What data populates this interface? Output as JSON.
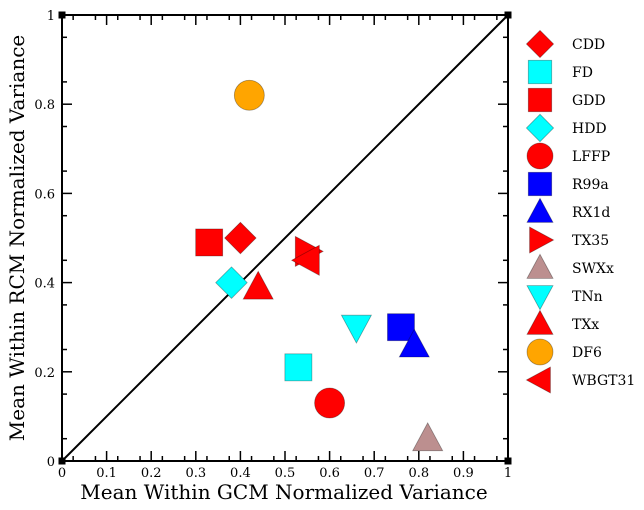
{
  "chart_data": {
    "type": "scatter",
    "title": "",
    "xlabel": "Mean Within GCM Normalized Variance",
    "ylabel": "Mean Within RCM Normalized Variance",
    "xlim": [
      0,
      1
    ],
    "ylim": [
      0,
      1
    ],
    "x_major_ticks": [
      "0",
      "0.1",
      "0.2",
      "0.3",
      "0.4",
      "0.5",
      "0.6",
      "0.7",
      "0.8",
      "0.9",
      "1"
    ],
    "y_major_ticks": [
      "0",
      "0.2",
      "0.4",
      "0.6",
      "0.8",
      "1"
    ],
    "grid": false,
    "legend_position": "right",
    "reference_line": {
      "from": [
        0,
        0
      ],
      "to": [
        1,
        1
      ]
    },
    "series": [
      {
        "name": "CDD",
        "marker": "diamond",
        "color": "#ff0000",
        "x": 0.4,
        "y": 0.5
      },
      {
        "name": "FD",
        "marker": "square",
        "color": "#00ffff",
        "x": 0.53,
        "y": 0.21
      },
      {
        "name": "GDD",
        "marker": "square",
        "color": "#ff0000",
        "x": 0.33,
        "y": 0.49
      },
      {
        "name": "HDD",
        "marker": "diamond",
        "color": "#00ffff",
        "x": 0.38,
        "y": 0.4
      },
      {
        "name": "LFFP",
        "marker": "circle",
        "color": "#ff0000",
        "x": 0.6,
        "y": 0.13
      },
      {
        "name": "R99a",
        "marker": "square",
        "color": "#0000ff",
        "x": 0.76,
        "y": 0.3
      },
      {
        "name": "RX1d",
        "marker": "triangle-up",
        "color": "#0000ff",
        "x": 0.79,
        "y": 0.26
      },
      {
        "name": "TX35",
        "marker": "triangle-right",
        "color": "#ff0000",
        "x": 0.55,
        "y": 0.47
      },
      {
        "name": "SWXx",
        "marker": "triangle-up",
        "color": "#bc8f8f",
        "x": 0.82,
        "y": 0.05
      },
      {
        "name": "TNn",
        "marker": "triangle-down",
        "color": "#00ffff",
        "x": 0.66,
        "y": 0.3
      },
      {
        "name": "TXx",
        "marker": "triangle-up",
        "color": "#ff0000",
        "x": 0.44,
        "y": 0.39
      },
      {
        "name": "DF6",
        "marker": "circle",
        "color": "#ffa500",
        "x": 0.42,
        "y": 0.82
      },
      {
        "name": "WBGT31",
        "marker": "triangle-left",
        "color": "#ff0000",
        "x": 0.55,
        "y": 0.45
      }
    ]
  }
}
